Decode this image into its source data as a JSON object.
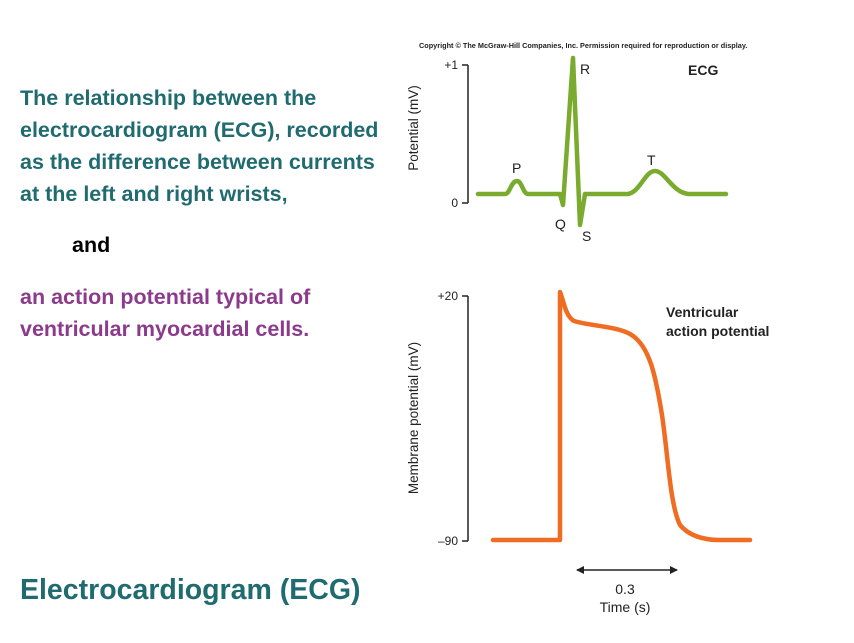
{
  "left_text": {
    "paragraph1": "The relationship between the electrocardiogram (ECG), recorded as the difference between currents at the left and right wrists,",
    "connector": "and",
    "paragraph2": "an action potential typical of ventricular myocardial cells."
  },
  "slide_title": "Electrocardiogram (ECG)",
  "copyright": "Copyright © The McGraw-Hill Companies, Inc. Permission required for reproduction or display.",
  "colors": {
    "teal": "#1f6b70",
    "purple": "#8c3a8c",
    "ecg_trace": "#7aab2e",
    "ap_trace": "#ef6c22"
  },
  "ecg_panel": {
    "title": "ECG",
    "y_axis_label": "Potential (mV)",
    "y_top_label": "+1",
    "y_bottom_label": "0",
    "wave_labels": {
      "p": "P",
      "q": "Q",
      "r": "R",
      "s": "S",
      "t": "T"
    }
  },
  "ap_panel": {
    "title_line1": "Ventricular",
    "title_line2": "action potential",
    "y_axis_label": "Membrane potential (mV)",
    "y_top_label": "+20",
    "y_bottom_label": "–90"
  },
  "time_scale": {
    "value": "0.3",
    "label": "Time (s)"
  }
}
